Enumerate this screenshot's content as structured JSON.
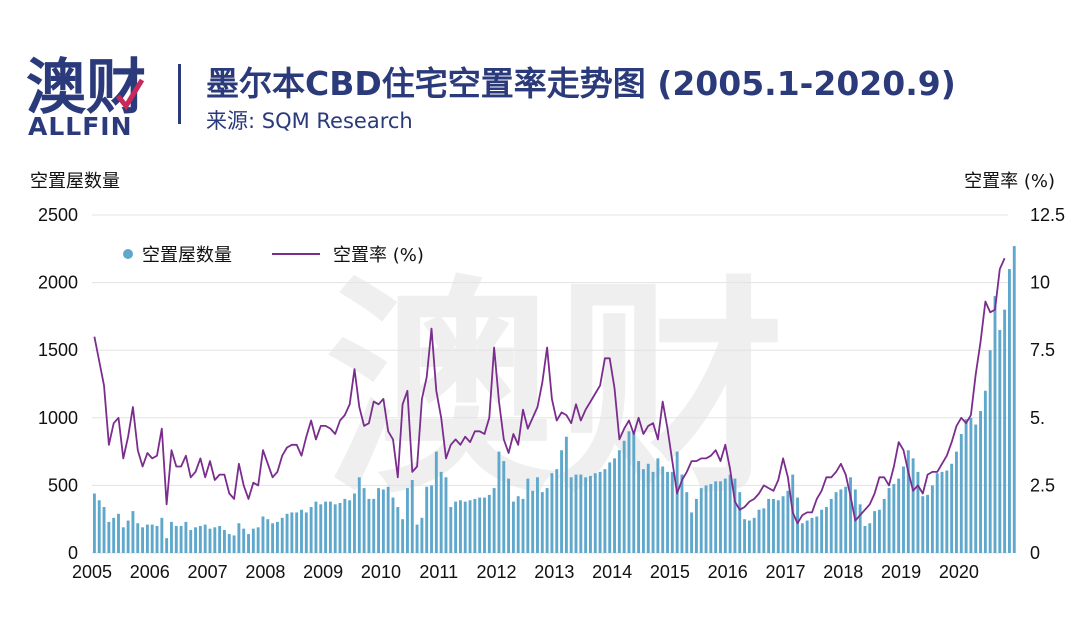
{
  "header": {
    "logo_cn": "澳财",
    "logo_en": "ALLFIN",
    "title": "墨尔本CBD住宅空置率走势图 (2005.1-2020.9)",
    "source": "来源: SQM Research"
  },
  "watermark_text": "澳财",
  "colors": {
    "bar": "#5fa8cc",
    "line": "#7b2d8e",
    "brand": "#2b3a7a",
    "brand_accent": "#c8285a"
  },
  "chart_data": {
    "type": "bar",
    "title": "墨尔本CBD住宅空置率走势图 (2005.1-2020.9)",
    "ylabel": "空置屋数量",
    "y2label": "空置率 (%)",
    "ylim": [
      0,
      2500
    ],
    "y2lim": [
      0,
      12.5
    ],
    "yticks": [
      "0",
      "500",
      "1000",
      "1500",
      "2000",
      "2500"
    ],
    "y2ticks": [
      "0",
      "2.5",
      "5.",
      "7.5",
      "10",
      "12.5"
    ],
    "xticks": [
      "2005",
      "2006",
      "2007",
      "2008",
      "2009",
      "2010",
      "2011",
      "2012",
      "2013",
      "2014",
      "2015",
      "2016",
      "2017",
      "2018",
      "2019",
      "2020"
    ],
    "legend": {
      "placement": "top-left",
      "bar_label": "空置屋数量",
      "line_label": "空置率 (%)"
    },
    "start": "2005-01",
    "end": "2020-09",
    "series": [
      {
        "name": "空置屋数量",
        "kind": "bar",
        "values": [
          440,
          390,
          340,
          230,
          260,
          290,
          190,
          240,
          310,
          220,
          190,
          210,
          210,
          200,
          260,
          110,
          230,
          200,
          200,
          230,
          170,
          190,
          200,
          210,
          180,
          190,
          200,
          170,
          140,
          130,
          220,
          180,
          140,
          180,
          190,
          270,
          250,
          220,
          230,
          260,
          290,
          300,
          300,
          320,
          300,
          340,
          380,
          360,
          380,
          380,
          360,
          370,
          400,
          390,
          440,
          560,
          480,
          400,
          400,
          480,
          470,
          490,
          410,
          340,
          250,
          480,
          540,
          210,
          260,
          490,
          500,
          750,
          600,
          560,
          340,
          380,
          390,
          380,
          390,
          400,
          410,
          410,
          430,
          480,
          750,
          680,
          550,
          380,
          420,
          400,
          550,
          460,
          560,
          450,
          480,
          590,
          620,
          760,
          860,
          560,
          580,
          580,
          560,
          570,
          590,
          600,
          620,
          670,
          700,
          760,
          830,
          900,
          900,
          680,
          620,
          660,
          600,
          700,
          640,
          600,
          600,
          750,
          580,
          450,
          300,
          400,
          480,
          500,
          510,
          530,
          530,
          550,
          580,
          550,
          450,
          250,
          240,
          260,
          320,
          330,
          400,
          400,
          390,
          420,
          460,
          580,
          410,
          220,
          240,
          260,
          270,
          320,
          340,
          400,
          450,
          470,
          490,
          560,
          470,
          360,
          200,
          220,
          310,
          320,
          400,
          480,
          510,
          550,
          640,
          760,
          700,
          600,
          420,
          430,
          500,
          590,
          600,
          610,
          660,
          750,
          880,
          990,
          1000,
          950,
          1050,
          1200,
          1500,
          1900,
          1650,
          1800,
          2100,
          2270
        ]
      },
      {
        "name": "空置率 (%)",
        "kind": "line",
        "values": [
          8.0,
          7.1,
          6.2,
          4.0,
          4.8,
          5.0,
          3.5,
          4.3,
          5.4,
          3.8,
          3.2,
          3.7,
          3.5,
          3.6,
          4.6,
          1.8,
          3.8,
          3.2,
          3.2,
          3.6,
          2.8,
          3.0,
          3.5,
          2.8,
          3.4,
          2.7,
          2.9,
          2.9,
          2.2,
          2.0,
          3.3,
          2.5,
          2.0,
          2.6,
          2.5,
          3.8,
          3.3,
          2.8,
          3.0,
          3.6,
          3.9,
          4.0,
          4.0,
          3.6,
          4.3,
          4.9,
          4.2,
          4.7,
          4.7,
          4.6,
          4.4,
          4.9,
          5.1,
          5.5,
          6.8,
          5.4,
          4.7,
          4.8,
          5.6,
          5.5,
          5.7,
          4.5,
          4.2,
          2.8,
          5.5,
          6.0,
          3.0,
          3.2,
          5.7,
          6.5,
          8.3,
          6.0,
          5.0,
          3.5,
          4.0,
          4.2,
          4.0,
          4.3,
          4.1,
          4.5,
          4.5,
          4.4,
          5.0,
          7.6,
          5.6,
          4.2,
          3.7,
          4.4,
          4.0,
          5.3,
          4.6,
          5.0,
          5.4,
          6.3,
          7.6,
          5.7,
          4.9,
          5.2,
          5.1,
          4.8,
          5.5,
          4.9,
          5.3,
          5.6,
          5.9,
          6.2,
          7.2,
          7.2,
          6.1,
          4.2,
          4.6,
          4.9,
          4.4,
          5.0,
          4.4,
          4.7,
          4.8,
          4.2,
          5.6,
          4.6,
          3.4,
          2.2,
          2.7,
          3.0,
          3.4,
          3.4,
          3.5,
          3.5,
          3.6,
          3.8,
          3.4,
          4.0,
          3.1,
          1.9,
          1.6,
          1.7,
          1.9,
          2.0,
          2.2,
          2.5,
          2.4,
          2.3,
          2.7,
          3.5,
          2.8,
          1.5,
          1.1,
          1.4,
          1.5,
          1.5,
          2.0,
          2.3,
          2.8,
          2.8,
          3.0,
          3.3,
          2.9,
          2.1,
          1.2,
          1.4,
          1.6,
          1.8,
          2.2,
          2.8,
          2.8,
          2.5,
          3.2,
          4.1,
          3.8,
          3.0,
          2.3,
          2.5,
          2.2,
          2.9,
          3.0,
          3.0,
          3.3,
          3.6,
          4.1,
          4.7,
          5.0,
          4.8,
          5.1,
          6.6,
          7.8,
          9.3,
          8.9,
          9.0,
          10.5,
          10.9
        ]
      }
    ]
  }
}
